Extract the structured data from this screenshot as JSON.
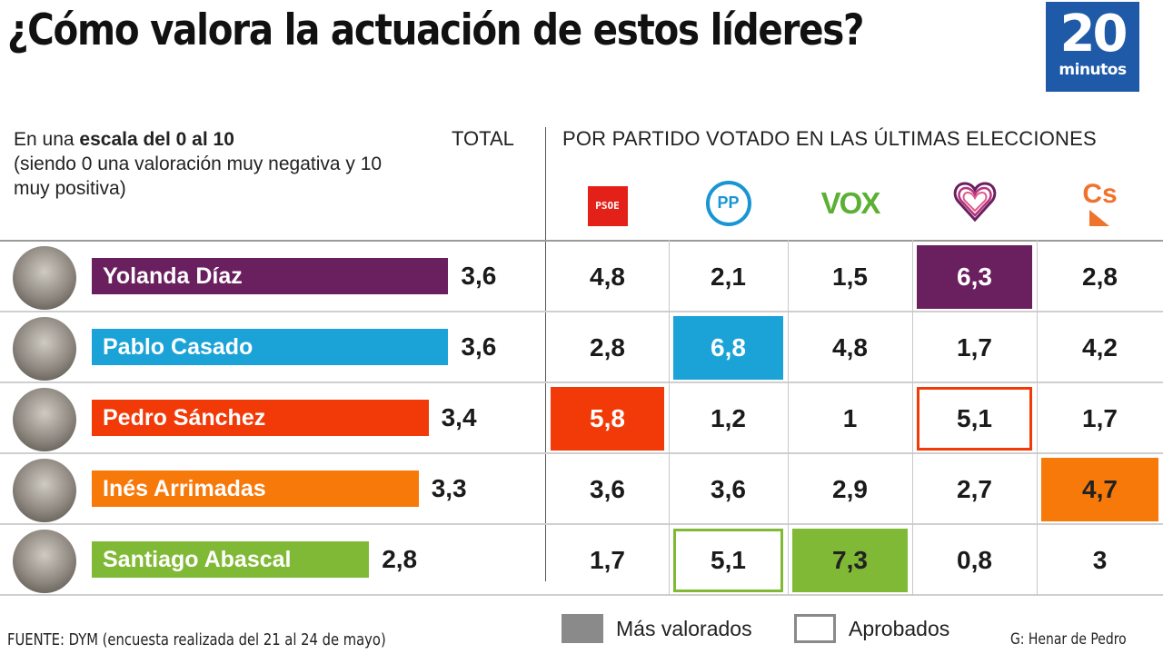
{
  "header": {
    "title": "¿Cómo valora la actuación de estos líderes?",
    "logo_number": "20",
    "logo_word": "minutos"
  },
  "subtitle": {
    "prefix": "En una ",
    "bold": "escala del 0 al 10",
    "rest": "(siendo 0 una valoración muy negativa y 10 muy positiva)"
  },
  "total_header": "TOTAL",
  "party_header": "POR PARTIDO VOTADO EN LAS ÚLTIMAS ELECCIONES",
  "parties": [
    {
      "key": "psoe",
      "label": "PSOE",
      "icon": "psoe-logo-icon",
      "color": "#e32119"
    },
    {
      "key": "pp",
      "label": "PP",
      "icon": "pp-logo-icon",
      "color": "#1a95d4"
    },
    {
      "key": "vox",
      "label": "VOX",
      "icon": "vox-logo-icon",
      "color": "#5bb034"
    },
    {
      "key": "up",
      "label": "♡",
      "icon": "unidas-podemos-heart-icon",
      "color": "#6a1f5e"
    },
    {
      "key": "cs",
      "label": "Cs",
      "icon": "ciudadanos-logo-icon",
      "color": "#f0732d"
    }
  ],
  "legend": {
    "most_valued": "Más valorados",
    "approved": "Aprobados"
  },
  "footer": {
    "source": "FUENTE: DYM (encuesta realizada del 21 al 24 de mayo)",
    "credit": "G: Henar de Pedro"
  },
  "chart_data": {
    "type": "table",
    "title": "¿Cómo valora la actuación de estos líderes?",
    "scale": [
      0,
      10
    ],
    "total_label": "TOTAL",
    "columns": [
      "PSOE",
      "PP",
      "VOX",
      "Unidas Podemos",
      "Cs"
    ],
    "leaders": [
      {
        "name": "Yolanda Díaz",
        "color": "#6a1f5e",
        "total": 3.6,
        "total_text": "3,6",
        "by_party": [
          4.8,
          2.1,
          1.5,
          6.3,
          2.8
        ],
        "by_party_text": [
          "4,8",
          "2,1",
          "1,5",
          "6,3",
          "2,8"
        ],
        "highlight": {
          "most_valued": 3,
          "approved": []
        }
      },
      {
        "name": "Pablo Casado",
        "color": "#1ba3d8",
        "total": 3.6,
        "total_text": "3,6",
        "by_party": [
          2.8,
          6.8,
          4.8,
          1.7,
          4.2
        ],
        "by_party_text": [
          "2,8",
          "6,8",
          "4,8",
          "1,7",
          "4,2"
        ],
        "highlight": {
          "most_valued": 1,
          "approved": []
        }
      },
      {
        "name": "Pedro Sánchez",
        "color": "#f23a08",
        "total": 3.4,
        "total_text": "3,4",
        "by_party": [
          5.8,
          1.2,
          1.0,
          5.1,
          1.7
        ],
        "by_party_text": [
          "5,8",
          "1,2",
          "1",
          "5,1",
          "1,7"
        ],
        "highlight": {
          "most_valued": 0,
          "approved": [
            3
          ]
        }
      },
      {
        "name": "Inés Arrimadas",
        "color": "#f7790a",
        "total": 3.3,
        "total_text": "3,3",
        "by_party": [
          3.6,
          3.6,
          2.9,
          2.7,
          4.7
        ],
        "by_party_text": [
          "3,6",
          "3,6",
          "2,9",
          "2,7",
          "4,7"
        ],
        "highlight": {
          "most_valued": 4,
          "approved": []
        }
      },
      {
        "name": "Santiago Abascal",
        "color": "#80b935",
        "total": 2.8,
        "total_text": "2,8",
        "by_party": [
          1.7,
          5.1,
          7.3,
          0.8,
          3.0
        ],
        "by_party_text": [
          "1,7",
          "5,1",
          "7,3",
          "0,8",
          "3"
        ],
        "highlight": {
          "most_valued": 2,
          "approved": [
            1
          ]
        }
      }
    ],
    "legend": [
      "Más valorados",
      "Aprobados"
    ]
  }
}
